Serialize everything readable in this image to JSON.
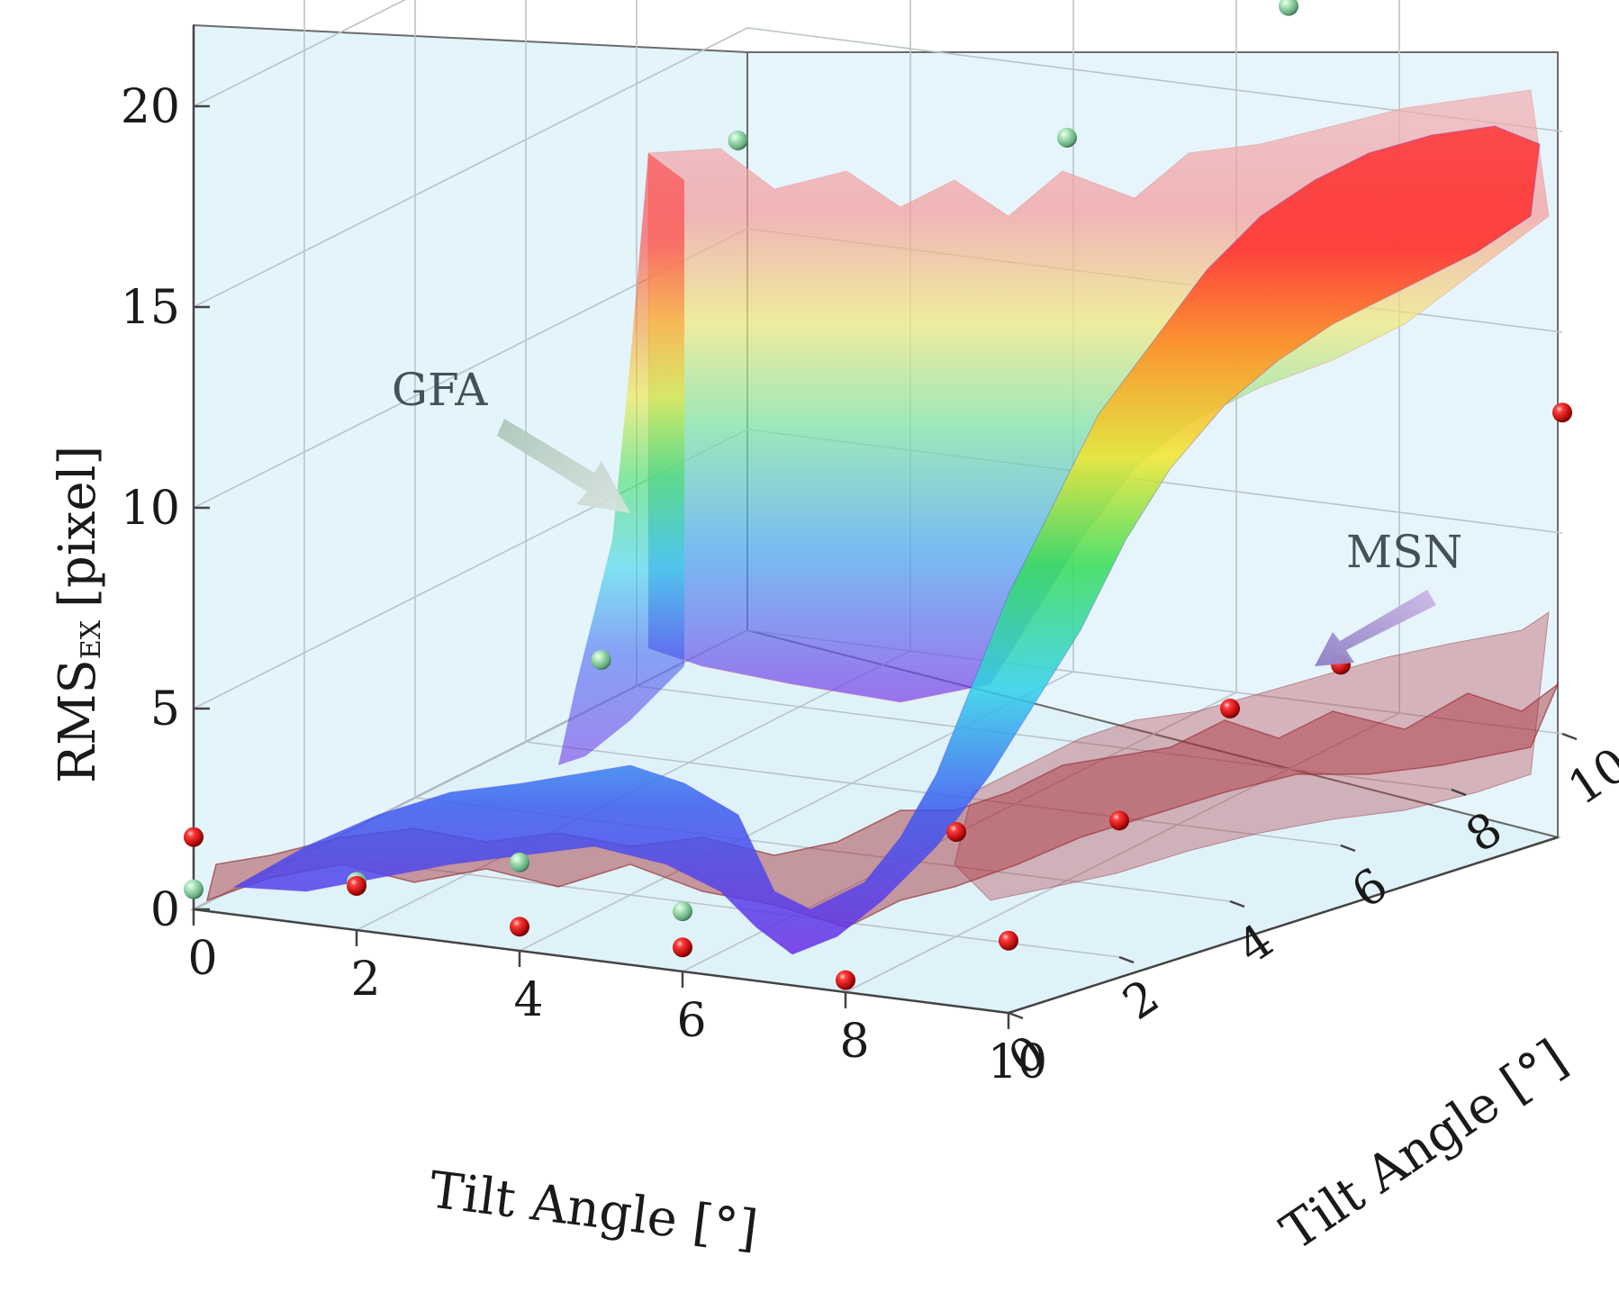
{
  "chart_data": {
    "type": "surface3d",
    "title": "",
    "xlabel": "Tilt Angle [°]",
    "ylabel": "Tilt Angle [°]",
    "zlabel": {
      "main": "RMS",
      "subscript": "EX",
      "unit": "[pixel]"
    },
    "xlim": [
      0,
      10
    ],
    "ylim": [
      0,
      10
    ],
    "zlim": [
      0,
      22
    ],
    "x_ticks": [
      "0",
      "2",
      "4",
      "6",
      "8",
      "10"
    ],
    "y_ticks": [
      "0",
      "2",
      "4",
      "6",
      "8",
      "10"
    ],
    "z_ticks": [
      "0",
      "5",
      "10",
      "15",
      "20"
    ],
    "series": [
      {
        "name": "GFA",
        "description_color": "rainbow colormap by height",
        "surface_profile_x": [
          0,
          1,
          2,
          3,
          4,
          4.5,
          5,
          6,
          7,
          8,
          9,
          10
        ],
        "surface_profile_z": [
          1.2,
          2.0,
          2.8,
          3.0,
          2.5,
          2.0,
          8.5,
          18.0,
          18.5,
          19.0,
          19.2,
          19.5
        ],
        "points": [
          {
            "x": 0,
            "y": 0,
            "z": 0.5
          },
          {
            "x": 2,
            "y": 0,
            "z": 1.2
          },
          {
            "x": 4,
            "y": 0,
            "z": 2.2
          },
          {
            "x": 6,
            "y": 0,
            "z": 1.5
          },
          {
            "x": 5,
            "y": 0,
            "z": 7.5
          },
          {
            "x": 6,
            "y": 1,
            "z": 20.0
          },
          {
            "x": 8,
            "y": 4,
            "z": 18.5
          },
          {
            "x": 10,
            "y": 10,
            "z": 21.5
          },
          {
            "x": 8,
            "y": 8,
            "z": 19.0
          }
        ]
      },
      {
        "name": "MSN",
        "description_color": "dark red",
        "surface_profile_x": [
          0,
          2,
          4,
          6,
          8,
          10
        ],
        "surface_profile_z": [
          2.0,
          1.8,
          1.5,
          1.2,
          2.5,
          3.5
        ],
        "points": [
          {
            "x": 0,
            "y": 0,
            "z": 1.8
          },
          {
            "x": 2,
            "y": 0,
            "z": 1.1
          },
          {
            "x": 4,
            "y": 0,
            "z": 0.6
          },
          {
            "x": 6,
            "y": 0,
            "z": 0.6
          },
          {
            "x": 8,
            "y": 0,
            "z": 0.3
          },
          {
            "x": 10,
            "y": 10,
            "z": 8.0
          },
          {
            "x": 10,
            "y": 6,
            "z": 4.5
          },
          {
            "x": 10,
            "y": 4,
            "z": 4.8
          },
          {
            "x": 10,
            "y": 2,
            "z": 3.4
          },
          {
            "x": 10,
            "y": 0,
            "z": 1.8
          },
          {
            "x": 8,
            "y": 2,
            "z": 2.6
          }
        ]
      }
    ],
    "annotations": [
      "GFA",
      "MSN"
    ],
    "grid": true,
    "colors": {
      "background": "#e3f4fb",
      "msn": "#a3262c",
      "gfa_top": "#ff2a2a",
      "gfa_mid_yellow": "#f7e62b",
      "gfa_mid_green": "#29d94a",
      "gfa_mid_cyan": "#2cd3e8",
      "gfa_low": "#5a2ae0",
      "point_red": "#e01515",
      "point_green": "#8fd4a4"
    }
  }
}
